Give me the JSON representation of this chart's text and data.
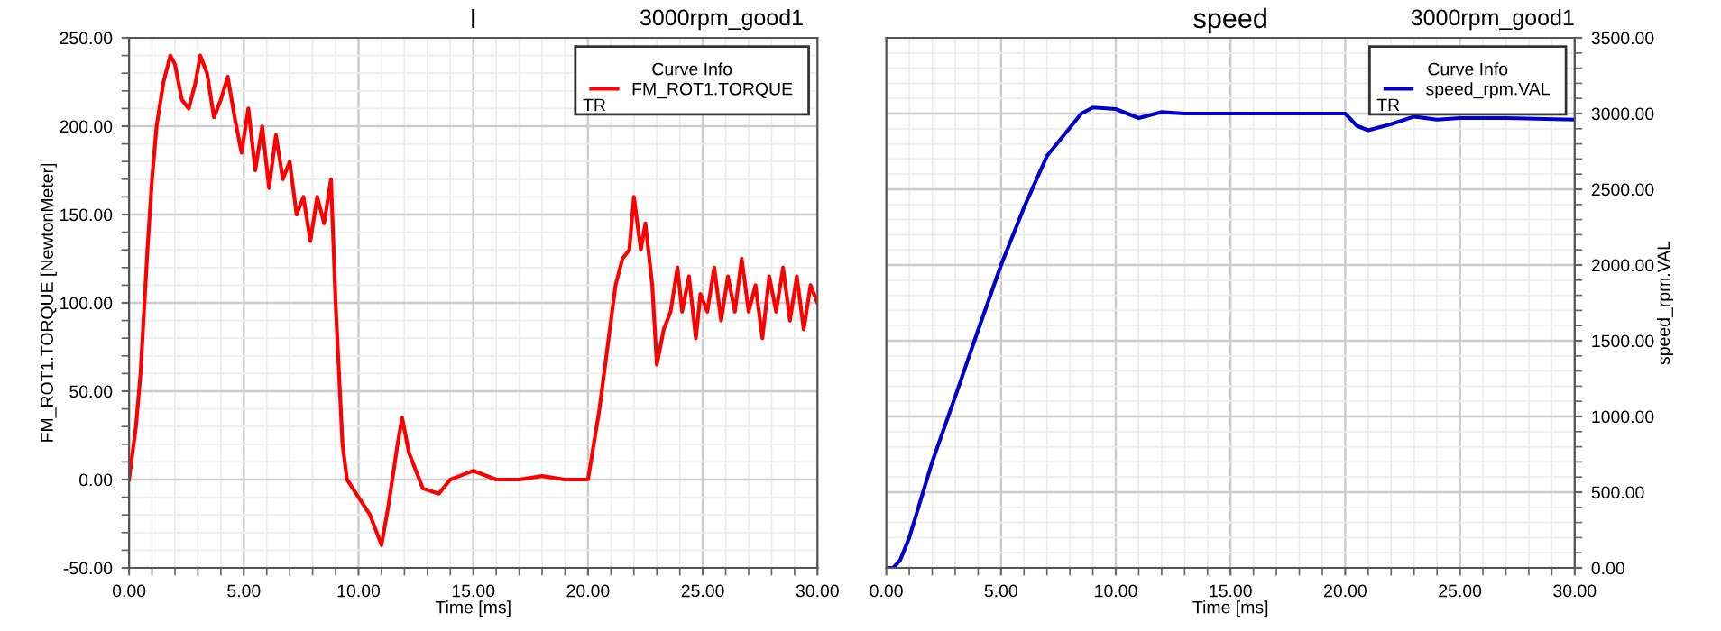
{
  "chart_data": [
    {
      "type": "line",
      "title": "I",
      "subtitle": "3000rpm_good1",
      "xlabel": "Time [ms]",
      "ylabel": "FM_ROT1.TORQUE [NewtonMeter]",
      "legend_title": "Curve Info",
      "annotations": [
        "TR"
      ],
      "legend": "top right",
      "grid": true,
      "x": [
        0,
        0.3,
        0.5,
        0.8,
        1.0,
        1.2,
        1.5,
        1.8,
        2.0,
        2.3,
        2.6,
        2.9,
        3.1,
        3.4,
        3.7,
        4.0,
        4.3,
        4.6,
        4.9,
        5.2,
        5.5,
        5.8,
        6.1,
        6.4,
        6.7,
        7.0,
        7.3,
        7.6,
        7.9,
        8.2,
        8.5,
        8.8,
        9.0,
        9.3,
        9.5,
        10,
        10.5,
        11.0,
        11.3,
        11.7,
        11.9,
        12.2,
        12.8,
        13.5,
        14,
        15,
        16,
        17,
        18,
        19,
        20,
        20.5,
        21.0,
        21.2,
        21.5,
        21.8,
        22.0,
        22.3,
        22.5,
        22.8,
        23.0,
        23.3,
        23.6,
        23.9,
        24.1,
        24.4,
        24.7,
        24.9,
        25.2,
        25.5,
        25.8,
        26.1,
        26.4,
        26.7,
        27.0,
        27.3,
        27.6,
        27.9,
        28.2,
        28.5,
        28.8,
        29.1,
        29.4,
        29.7,
        30
      ],
      "series": [
        {
          "name": "FM_ROT1.TORQUE",
          "color": "#ff0000",
          "values": [
            0,
            30,
            60,
            130,
            170,
            200,
            225,
            240,
            235,
            215,
            210,
            225,
            240,
            230,
            205,
            215,
            228,
            205,
            185,
            210,
            175,
            200,
            165,
            195,
            170,
            180,
            150,
            160,
            135,
            160,
            145,
            170,
            100,
            20,
            0,
            -10,
            -20,
            -37,
            -15,
            20,
            35,
            15,
            -5,
            -8,
            0,
            5,
            0,
            0,
            2,
            0,
            0,
            40,
            90,
            110,
            125,
            130,
            160,
            130,
            145,
            110,
            65,
            85,
            95,
            120,
            95,
            115,
            80,
            105,
            95,
            120,
            90,
            115,
            95,
            125,
            95,
            110,
            80,
            115,
            95,
            120,
            90,
            115,
            85,
            110,
            100
          ]
        }
      ],
      "xlim": [
        0,
        30
      ],
      "xticks": [
        {
          "value": 0,
          "label": "0.00"
        },
        {
          "value": 5,
          "label": "5.00"
        },
        {
          "value": 10,
          "label": "10.00"
        },
        {
          "value": 15,
          "label": "15.00"
        },
        {
          "value": 20,
          "label": "20.00"
        },
        {
          "value": 25,
          "label": "25.00"
        },
        {
          "value": 30,
          "label": "30.00"
        }
      ],
      "ylim": [
        -50,
        250
      ],
      "yticks": [
        {
          "value": -50,
          "label": "-50.00"
        },
        {
          "value": 0,
          "label": "0.00"
        },
        {
          "value": 50,
          "label": "50.00"
        },
        {
          "value": 100,
          "label": "100.00"
        },
        {
          "value": 150,
          "label": "150.00"
        },
        {
          "value": 200,
          "label": "200.00"
        },
        {
          "value": 250,
          "label": "250.00"
        }
      ]
    },
    {
      "type": "line",
      "title": "speed",
      "subtitle": "3000rpm_good1",
      "xlabel": "Time [ms]",
      "y2label": "speed_rpm.VAL",
      "legend_title": "Curve Info",
      "annotations": [
        "TR"
      ],
      "legend": "top right",
      "grid": true,
      "x": [
        0,
        0.3,
        0.6,
        1.0,
        1.5,
        2,
        3,
        4,
        5,
        6,
        7,
        8.5,
        9,
        10,
        11,
        12,
        13,
        15,
        17,
        20,
        20.5,
        21,
        22,
        23,
        24,
        25,
        27,
        30
      ],
      "series": [
        {
          "name": "speed_rpm.VAL",
          "color": "#0000cc",
          "axis": "y2",
          "values": [
            0,
            0,
            50,
            200,
            450,
            700,
            1130,
            1570,
            2000,
            2380,
            2720,
            3000,
            3040,
            3030,
            2970,
            3010,
            3000,
            3000,
            3000,
            3000,
            2920,
            2890,
            2930,
            2980,
            2960,
            2970,
            2970,
            2960
          ]
        }
      ],
      "xlim": [
        0,
        30
      ],
      "xticks": [
        {
          "value": 0,
          "label": "0.00"
        },
        {
          "value": 5,
          "label": "5.00"
        },
        {
          "value": 10,
          "label": "10.00"
        },
        {
          "value": 15,
          "label": "15.00"
        },
        {
          "value": 20,
          "label": "20.00"
        },
        {
          "value": 25,
          "label": "25.00"
        },
        {
          "value": 30,
          "label": "30.00"
        }
      ],
      "y2lim": [
        0,
        3500
      ],
      "y2ticks": [
        {
          "value": 0,
          "label": "0.00"
        },
        {
          "value": 500,
          "label": "500.00"
        },
        {
          "value": 1000,
          "label": "1000.00"
        },
        {
          "value": 1500,
          "label": "1500.00"
        },
        {
          "value": 2000,
          "label": "2000.00"
        },
        {
          "value": 2500,
          "label": "2500.00"
        },
        {
          "value": 3000,
          "label": "3000.00"
        },
        {
          "value": 3500,
          "label": "3500.00"
        }
      ]
    }
  ]
}
